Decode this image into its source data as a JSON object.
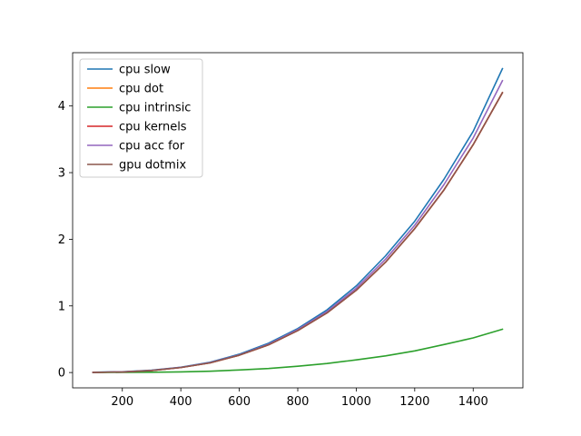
{
  "chart_data": {
    "type": "line",
    "title": "",
    "xlabel": "",
    "ylabel": "",
    "xlim": [
      30,
      1570
    ],
    "ylim": [
      -0.23,
      4.8
    ],
    "xticks": [
      200,
      400,
      600,
      800,
      1000,
      1200,
      1400
    ],
    "yticks": [
      0,
      1,
      2,
      3,
      4
    ],
    "grid": false,
    "legend_position": "top-left",
    "x": [
      100,
      200,
      300,
      400,
      500,
      600,
      700,
      800,
      900,
      1000,
      1100,
      1200,
      1300,
      1400,
      1500
    ],
    "series": [
      {
        "name": "cpu slow",
        "color": "#1f77b4",
        "values": [
          0.005,
          0.012,
          0.035,
          0.08,
          0.155,
          0.275,
          0.44,
          0.66,
          0.94,
          1.3,
          1.75,
          2.27,
          2.9,
          3.62,
          4.56
        ]
      },
      {
        "name": "cpu dot",
        "color": "#ff7f0e",
        "values": [
          0.002,
          0.008,
          0.03,
          0.075,
          0.145,
          0.26,
          0.415,
          0.63,
          0.895,
          1.235,
          1.655,
          2.16,
          2.74,
          3.42,
          4.2
        ]
      },
      {
        "name": "cpu intrinsic",
        "color": "#2ca02c",
        "values": [
          0.0,
          0.002,
          0.004,
          0.01,
          0.02,
          0.038,
          0.06,
          0.095,
          0.135,
          0.19,
          0.25,
          0.325,
          0.42,
          0.52,
          0.65
        ]
      },
      {
        "name": "cpu kernels",
        "color": "#d62728",
        "values": [
          0.002,
          0.008,
          0.03,
          0.075,
          0.145,
          0.26,
          0.415,
          0.63,
          0.895,
          1.235,
          1.655,
          2.16,
          2.74,
          3.42,
          4.2
        ]
      },
      {
        "name": "cpu acc for",
        "color": "#9467bd",
        "values": [
          0.003,
          0.009,
          0.032,
          0.077,
          0.15,
          0.265,
          0.425,
          0.645,
          0.915,
          1.265,
          1.7,
          2.21,
          2.82,
          3.52,
          4.38
        ]
      },
      {
        "name": "gpu dotmix",
        "color": "#8c564b",
        "values": [
          0.003,
          0.008,
          0.03,
          0.075,
          0.145,
          0.26,
          0.415,
          0.63,
          0.895,
          1.235,
          1.655,
          2.16,
          2.74,
          3.42,
          4.2
        ]
      }
    ]
  }
}
